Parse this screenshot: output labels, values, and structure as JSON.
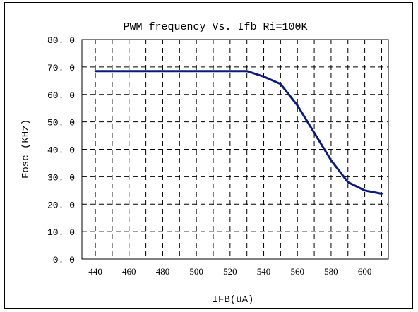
{
  "chart_data": {
    "type": "line",
    "title": "PWM frequency Vs. Ifb Ri=100K",
    "xlabel": "IFB(uA)",
    "ylabel": "Fosc (KHz)",
    "xlim": [
      432,
      614
    ],
    "ylim": [
      0,
      80
    ],
    "x_ticks": [
      440,
      460,
      480,
      500,
      520,
      540,
      560,
      580,
      600
    ],
    "x_tick_labels": [
      "440",
      "460",
      "480",
      "500",
      "520",
      "540",
      "560",
      "580",
      "600"
    ],
    "y_ticks": [
      0,
      10,
      20,
      30,
      40,
      50,
      60,
      70,
      80
    ],
    "y_tick_labels": [
      "0. 0",
      "10. 0",
      "20. 0",
      "30. 0",
      "40. 0",
      "50. 0",
      "60. 0",
      "70. 0",
      "80. 0"
    ],
    "grid": true,
    "grid_style": "dashed",
    "series": [
      {
        "color": "#0d1a78",
        "x": [
          440,
          450,
          460,
          470,
          480,
          490,
          500,
          510,
          520,
          530,
          540,
          550,
          560,
          570,
          580,
          590,
          600,
          610
        ],
        "y": [
          68.5,
          68.5,
          68.5,
          68.5,
          68.5,
          68.5,
          68.5,
          68.5,
          68.5,
          68.5,
          66.5,
          63.8,
          56.0,
          46.0,
          36.0,
          28.0,
          25.0,
          23.8
        ]
      }
    ]
  }
}
